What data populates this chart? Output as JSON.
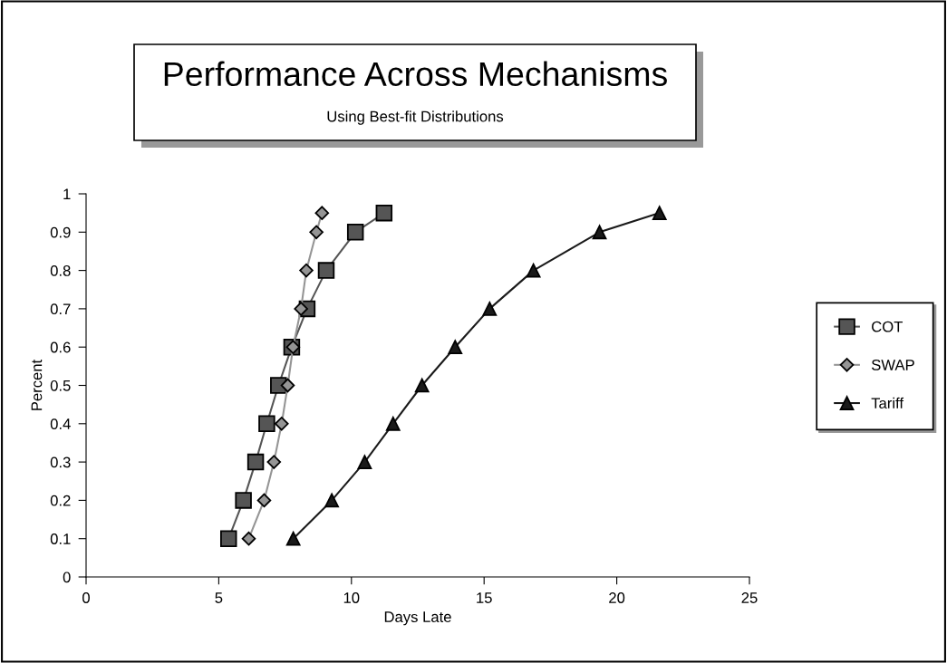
{
  "chart_data": {
    "type": "line",
    "title": "Performance Across Mechanisms",
    "subtitle": "Using Best-fit Distributions",
    "xlabel": "Days Late",
    "ylabel": "Percent",
    "series": [
      {
        "name": "COT",
        "color": "#555555",
        "marker": "square",
        "x": [
          5.37,
          5.93,
          6.39,
          6.81,
          7.25,
          7.75,
          8.33,
          9.05,
          10.15,
          11.23
        ],
        "values": [
          0.1,
          0.2,
          0.3,
          0.4,
          0.5,
          0.6,
          0.7,
          0.8,
          0.9,
          0.95
        ]
      },
      {
        "name": "SWAP",
        "color": "#959595",
        "marker": "diamond",
        "x": [
          6.13,
          6.71,
          7.08,
          7.37,
          7.6,
          7.8,
          8.1,
          8.3,
          8.68,
          8.89
        ],
        "values": [
          0.1,
          0.2,
          0.3,
          0.4,
          0.5,
          0.6,
          0.7,
          0.8,
          0.9,
          0.95
        ]
      },
      {
        "name": "Tariff",
        "color": "#1a1a1a",
        "marker": "triangle",
        "x": [
          7.81,
          9.26,
          10.5,
          11.57,
          12.66,
          13.91,
          15.21,
          16.86,
          19.35,
          21.61
        ],
        "values": [
          0.1,
          0.2,
          0.3,
          0.4,
          0.5,
          0.6,
          0.7,
          0.8,
          0.9,
          0.95
        ]
      }
    ],
    "xlim": [
      0,
      25
    ],
    "xticks": [
      0,
      5,
      10,
      15,
      20,
      25
    ],
    "ylim": [
      0,
      1
    ],
    "yticks": [
      0,
      0.1,
      0.2,
      0.3,
      0.4,
      0.5,
      0.6,
      0.7,
      0.8,
      0.9,
      1
    ],
    "grid": false,
    "legend": "right",
    "line_style": "solid"
  }
}
